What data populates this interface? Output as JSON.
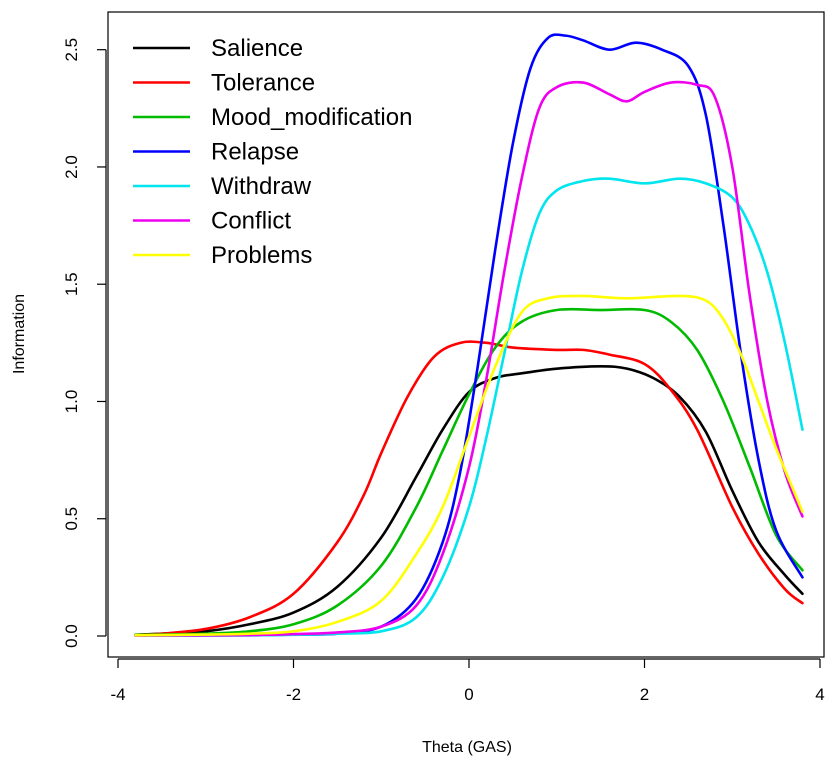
{
  "chart_data": {
    "type": "line",
    "title": "",
    "xlabel": "Theta (GAS)",
    "ylabel": "Information",
    "xlim": [
      -4,
      4
    ],
    "ylim": [
      0,
      2.6
    ],
    "x_ticks": [
      "-4",
      "-2",
      "0",
      "2",
      "4"
    ],
    "x_tick_values": [
      -4,
      -2,
      0,
      2,
      4
    ],
    "y_ticks": [
      "0.0",
      "0.5",
      "1.0",
      "1.5",
      "2.0",
      "2.5"
    ],
    "y_tick_values": [
      0,
      0.5,
      1.0,
      1.5,
      2.0,
      2.5
    ],
    "grid": false,
    "legend_position": "top-left",
    "series": [
      {
        "name": "Salience",
        "color": "#000000",
        "points": [
          [
            -3.8,
            0.005
          ],
          [
            -3.5,
            0.01
          ],
          [
            -3,
            0.02
          ],
          [
            -2.5,
            0.05
          ],
          [
            -2,
            0.1
          ],
          [
            -1.5,
            0.21
          ],
          [
            -1,
            0.42
          ],
          [
            -0.6,
            0.68
          ],
          [
            -0.3,
            0.88
          ],
          [
            0,
            1.04
          ],
          [
            0.3,
            1.1
          ],
          [
            0.6,
            1.12
          ],
          [
            1,
            1.14
          ],
          [
            1.5,
            1.15
          ],
          [
            1.8,
            1.14
          ],
          [
            2.1,
            1.1
          ],
          [
            2.4,
            1.02
          ],
          [
            2.7,
            0.87
          ],
          [
            3.0,
            0.62
          ],
          [
            3.3,
            0.4
          ],
          [
            3.6,
            0.26
          ],
          [
            3.8,
            0.18
          ]
        ]
      },
      {
        "name": "Tolerance",
        "color": "#ff0000",
        "points": [
          [
            -3.8,
            0.005
          ],
          [
            -3.5,
            0.01
          ],
          [
            -3,
            0.03
          ],
          [
            -2.5,
            0.08
          ],
          [
            -2,
            0.18
          ],
          [
            -1.5,
            0.4
          ],
          [
            -1.2,
            0.6
          ],
          [
            -1,
            0.78
          ],
          [
            -0.7,
            1.02
          ],
          [
            -0.4,
            1.19
          ],
          [
            -0.1,
            1.25
          ],
          [
            0.2,
            1.25
          ],
          [
            0.5,
            1.23
          ],
          [
            1,
            1.22
          ],
          [
            1.3,
            1.22
          ],
          [
            1.6,
            1.2
          ],
          [
            2.0,
            1.16
          ],
          [
            2.3,
            1.05
          ],
          [
            2.6,
            0.88
          ],
          [
            3.0,
            0.55
          ],
          [
            3.3,
            0.35
          ],
          [
            3.6,
            0.2
          ],
          [
            3.8,
            0.14
          ]
        ]
      },
      {
        "name": "Mood_modification",
        "color": "#00bb00",
        "points": [
          [
            -3.8,
            0.005
          ],
          [
            -3,
            0.01
          ],
          [
            -2.5,
            0.02
          ],
          [
            -2,
            0.05
          ],
          [
            -1.5,
            0.13
          ],
          [
            -1,
            0.3
          ],
          [
            -0.6,
            0.55
          ],
          [
            -0.3,
            0.79
          ],
          [
            0,
            1.03
          ],
          [
            0.3,
            1.23
          ],
          [
            0.6,
            1.34
          ],
          [
            1,
            1.39
          ],
          [
            1.5,
            1.39
          ],
          [
            2.0,
            1.39
          ],
          [
            2.3,
            1.34
          ],
          [
            2.6,
            1.22
          ],
          [
            2.9,
            1.0
          ],
          [
            3.2,
            0.72
          ],
          [
            3.5,
            0.43
          ],
          [
            3.8,
            0.28
          ]
        ]
      },
      {
        "name": "Relapse",
        "color": "#0000ff",
        "points": [
          [
            -3.8,
            0.002
          ],
          [
            -2.5,
            0.003
          ],
          [
            -2,
            0.006
          ],
          [
            -1.5,
            0.01
          ],
          [
            -1,
            0.04
          ],
          [
            -0.6,
            0.16
          ],
          [
            -0.3,
            0.4
          ],
          [
            -0.1,
            0.7
          ],
          [
            0.1,
            1.15
          ],
          [
            0.3,
            1.65
          ],
          [
            0.5,
            2.1
          ],
          [
            0.7,
            2.42
          ],
          [
            0.9,
            2.55
          ],
          [
            1.1,
            2.56
          ],
          [
            1.3,
            2.54
          ],
          [
            1.6,
            2.5
          ],
          [
            1.9,
            2.53
          ],
          [
            2.2,
            2.5
          ],
          [
            2.5,
            2.43
          ],
          [
            2.7,
            2.22
          ],
          [
            2.9,
            1.75
          ],
          [
            3.1,
            1.2
          ],
          [
            3.3,
            0.75
          ],
          [
            3.5,
            0.45
          ],
          [
            3.8,
            0.25
          ]
        ]
      },
      {
        "name": "Withdraw",
        "color": "#00e5ee",
        "points": [
          [
            -3.8,
            0.002
          ],
          [
            -2.5,
            0.003
          ],
          [
            -2,
            0.005
          ],
          [
            -1.5,
            0.01
          ],
          [
            -1,
            0.02
          ],
          [
            -0.6,
            0.08
          ],
          [
            -0.3,
            0.25
          ],
          [
            0,
            0.55
          ],
          [
            0.2,
            0.85
          ],
          [
            0.4,
            1.2
          ],
          [
            0.6,
            1.55
          ],
          [
            0.8,
            1.8
          ],
          [
            1,
            1.9
          ],
          [
            1.3,
            1.94
          ],
          [
            1.6,
            1.95
          ],
          [
            2.0,
            1.93
          ],
          [
            2.4,
            1.95
          ],
          [
            2.7,
            1.93
          ],
          [
            3.0,
            1.87
          ],
          [
            3.2,
            1.75
          ],
          [
            3.4,
            1.55
          ],
          [
            3.6,
            1.25
          ],
          [
            3.8,
            0.88
          ]
        ]
      },
      {
        "name": "Conflict",
        "color": "#ee00ee",
        "points": [
          [
            -3.8,
            0.002
          ],
          [
            -2.5,
            0.004
          ],
          [
            -2,
            0.008
          ],
          [
            -1.5,
            0.015
          ],
          [
            -1,
            0.04
          ],
          [
            -0.6,
            0.13
          ],
          [
            -0.3,
            0.35
          ],
          [
            0,
            0.72
          ],
          [
            0.2,
            1.1
          ],
          [
            0.4,
            1.55
          ],
          [
            0.6,
            1.95
          ],
          [
            0.8,
            2.25
          ],
          [
            1,
            2.34
          ],
          [
            1.3,
            2.36
          ],
          [
            1.6,
            2.31
          ],
          [
            1.8,
            2.28
          ],
          [
            2.0,
            2.32
          ],
          [
            2.3,
            2.36
          ],
          [
            2.6,
            2.35
          ],
          [
            2.8,
            2.3
          ],
          [
            3.0,
            2.0
          ],
          [
            3.2,
            1.45
          ],
          [
            3.4,
            1.0
          ],
          [
            3.6,
            0.7
          ],
          [
            3.8,
            0.51
          ]
        ]
      },
      {
        "name": "Problems",
        "color": "#ffff00",
        "points": [
          [
            -3.8,
            0.003
          ],
          [
            -3,
            0.006
          ],
          [
            -2.5,
            0.01
          ],
          [
            -2,
            0.02
          ],
          [
            -1.5,
            0.06
          ],
          [
            -1,
            0.15
          ],
          [
            -0.6,
            0.35
          ],
          [
            -0.3,
            0.55
          ],
          [
            0,
            0.85
          ],
          [
            0.3,
            1.15
          ],
          [
            0.6,
            1.38
          ],
          [
            0.9,
            1.44
          ],
          [
            1.3,
            1.45
          ],
          [
            1.8,
            1.44
          ],
          [
            2.4,
            1.45
          ],
          [
            2.7,
            1.43
          ],
          [
            2.9,
            1.35
          ],
          [
            3.1,
            1.2
          ],
          [
            3.3,
            1.0
          ],
          [
            3.5,
            0.8
          ],
          [
            3.7,
            0.62
          ],
          [
            3.8,
            0.53
          ]
        ]
      }
    ]
  }
}
